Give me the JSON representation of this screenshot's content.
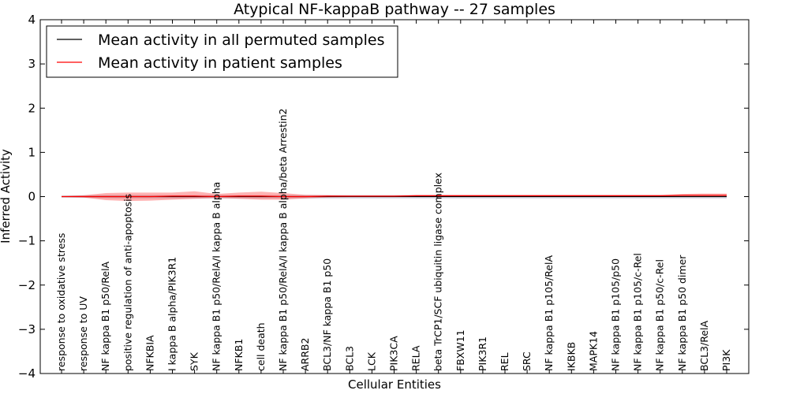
{
  "chart_data": {
    "type": "line",
    "title": "Atypical NF-kappaB pathway -- 27 samples",
    "xlabel": "Cellular Entities",
    "ylabel": "Inferred Activity",
    "ylim": [
      -4,
      4
    ],
    "yticks": [
      -4,
      -3,
      -2,
      -1,
      0,
      1,
      2,
      3,
      4
    ],
    "grid": false,
    "legend_position": "top-left",
    "categories": [
      "response to oxidative stress",
      "response to UV",
      "NF kappa B1 p50/RelA",
      "positive regulation of anti-apoptosis",
      "NFKBIA",
      "I kappa B alpha/PIK3R1",
      "SYK",
      "NF kappa B1 p50/RelA/I kappa B alpha",
      "NFKB1",
      "cell death",
      "NF kappa B1 p50/RelA/I kappa B alpha/beta Arrestin2",
      "ARRB2",
      "BCL3/NF kappa B1 p50",
      "BCL3",
      "LCK",
      "PIK3CA",
      "RELA",
      "beta TrCP1/SCF ubiquitin ligase complex",
      "FBXW11",
      "PIK3R1",
      "REL",
      "SRC",
      "NF kappa B1 p105/RelA",
      "IKBKB",
      "MAPK14",
      "NF kappa B1 p105/p50",
      "NF kappa B1 p105/c-Rel",
      "NF kappa B1 p50/c-Rel",
      "NF kappa B1 p50 dimer",
      "BCL3/RelA",
      "PI3K"
    ],
    "series": [
      {
        "name": "Mean activity in all permuted samples",
        "color": "#000000",
        "values": [
          0,
          0,
          0,
          0,
          0,
          0,
          0,
          0,
          0,
          0,
          0,
          0,
          0,
          0,
          0,
          0,
          0,
          0,
          0,
          0,
          0,
          0,
          0,
          0,
          0,
          0,
          0,
          0,
          0,
          0,
          0
        ],
        "band_lower": [
          -0.02,
          -0.03,
          -0.04,
          -0.05,
          -0.05,
          -0.05,
          -0.05,
          -0.05,
          -0.05,
          -0.05,
          -0.05,
          -0.05,
          -0.05,
          -0.05,
          -0.05,
          -0.05,
          -0.05,
          -0.05,
          -0.05,
          -0.05,
          -0.05,
          -0.05,
          -0.05,
          -0.05,
          -0.05,
          -0.05,
          -0.05,
          -0.05,
          -0.05,
          -0.05,
          -0.05
        ],
        "band_upper": [
          0.02,
          0.03,
          0.04,
          0.04,
          0.04,
          0.04,
          0.04,
          0.04,
          0.04,
          0.04,
          0.04,
          0.04,
          0.04,
          0.04,
          0.04,
          0.04,
          0.04,
          0.04,
          0.04,
          0.04,
          0.04,
          0.04,
          0.04,
          0.04,
          0.04,
          0.04,
          0.04,
          0.04,
          0.04,
          0.04,
          0.04
        ]
      },
      {
        "name": "Mean activity in patient samples",
        "color": "#ff0000",
        "values": [
          0,
          0,
          0,
          0,
          0,
          0.01,
          0.01,
          0,
          0.01,
          0.01,
          0,
          0,
          0.01,
          0.01,
          0.01,
          0.01,
          0.02,
          0.02,
          0.02,
          0.02,
          0.02,
          0.02,
          0.02,
          0.02,
          0.02,
          0.02,
          0.02,
          0.02,
          0.03,
          0.03,
          0.03
        ],
        "band_lower": [
          0,
          -0.02,
          -0.08,
          -0.1,
          -0.09,
          -0.07,
          -0.05,
          -0.03,
          -0.05,
          -0.07,
          -0.07,
          -0.04,
          -0.02,
          -0.01,
          -0.01,
          -0.01,
          0,
          0,
          0,
          0,
          0,
          0,
          0,
          0,
          0,
          0,
          0,
          0,
          0,
          0,
          0
        ],
        "band_upper": [
          0.01,
          0.03,
          0.08,
          0.09,
          0.09,
          0.09,
          0.12,
          0.06,
          0.09,
          0.11,
          0.08,
          0.04,
          0.03,
          0.02,
          0.02,
          0.02,
          0.03,
          0.03,
          0.03,
          0.03,
          0.03,
          0.03,
          0.03,
          0.03,
          0.03,
          0.03,
          0.03,
          0.03,
          0.06,
          0.07,
          0.07
        ]
      }
    ]
  }
}
